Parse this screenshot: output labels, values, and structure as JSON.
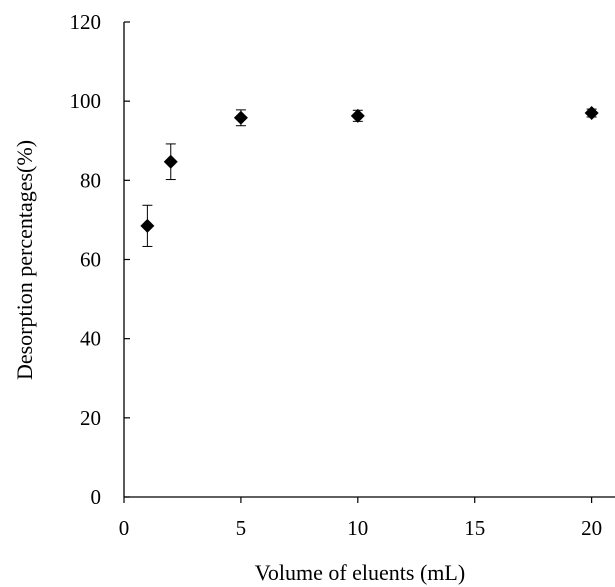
{
  "chart_data": {
    "type": "scatter",
    "title": "",
    "xlabel": "Volume of eluents (mL)",
    "ylabel": "Desorption percentages(%)",
    "xlim": [
      0,
      21
    ],
    "ylim": [
      0,
      120
    ],
    "xticks": [
      0,
      5,
      10,
      15,
      20
    ],
    "yticks": [
      0,
      20,
      40,
      60,
      80,
      100,
      120
    ],
    "grid": false,
    "legend": "none",
    "series": [
      {
        "marker": "diamond",
        "color": "#000000",
        "x": [
          1,
          2,
          5,
          10,
          20
        ],
        "y": [
          68.5,
          84.7,
          95.8,
          96.3,
          97.0
        ],
        "error": [
          5.2,
          4.5,
          2.0,
          1.4,
          1.0
        ]
      }
    ]
  }
}
